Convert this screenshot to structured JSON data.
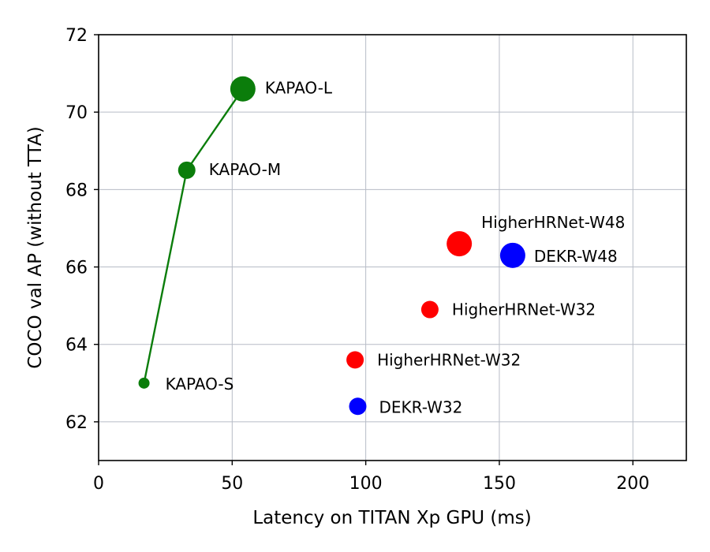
{
  "chart_data": {
    "type": "scatter",
    "title": "",
    "xlabel": "Latency on TITAN Xp GPU (ms)",
    "ylabel": "COCO val AP (without TTA)",
    "xlim": [
      0,
      220
    ],
    "ylim": [
      61,
      72
    ],
    "xticks": [
      0,
      50,
      100,
      150,
      200
    ],
    "yticks": [
      62,
      64,
      66,
      68,
      70,
      72
    ],
    "grid": true,
    "colors": {
      "kapao": "#0b7d0b",
      "higherhrnet": "#ff0000",
      "dekr": "#0000ff"
    },
    "series": [
      {
        "name": "KAPAO",
        "color": "#0b7d0b",
        "connected": true,
        "points": [
          {
            "label": "KAPAO-S",
            "x": 17,
            "y": 63.0,
            "size": "small"
          },
          {
            "label": "KAPAO-M",
            "x": 33,
            "y": 68.5,
            "size": "medium"
          },
          {
            "label": "KAPAO-L",
            "x": 54,
            "y": 70.6,
            "size": "large"
          }
        ]
      },
      {
        "name": "HigherHRNet",
        "color": "#ff0000",
        "connected": false,
        "points": [
          {
            "label": "HigherHRNet-W32",
            "x": 96,
            "y": 63.6,
            "size": "medium"
          },
          {
            "label": "HigherHRNet-W32",
            "x": 124,
            "y": 64.9,
            "size": "medium"
          },
          {
            "label": "HigherHRNet-W48",
            "x": 135,
            "y": 66.6,
            "size": "large"
          }
        ]
      },
      {
        "name": "DEKR",
        "color": "#0000ff",
        "connected": false,
        "points": [
          {
            "label": "DEKR-W32",
            "x": 97,
            "y": 62.4,
            "size": "medium"
          },
          {
            "label": "DEKR-W48",
            "x": 155,
            "y": 66.3,
            "size": "large"
          }
        ]
      }
    ]
  }
}
